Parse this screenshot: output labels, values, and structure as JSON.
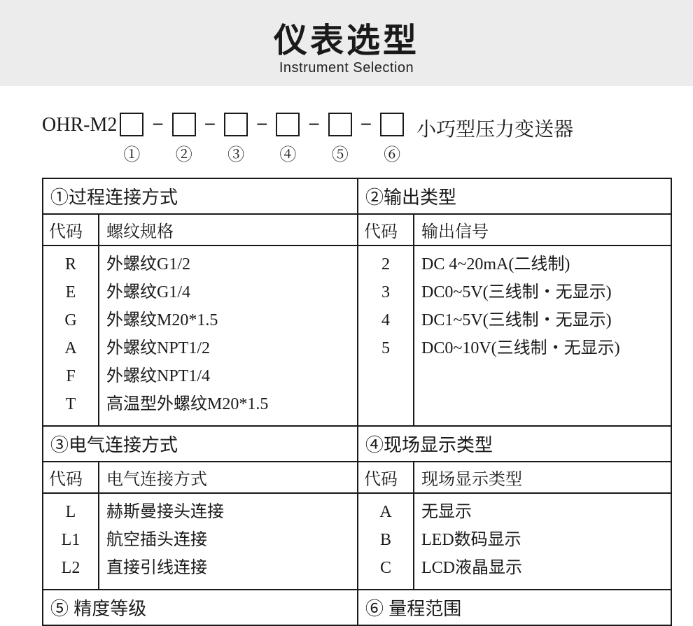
{
  "colors": {
    "background": "#ffffff",
    "header_band": "#ececec",
    "text": "#1a1a1a",
    "border": "#1a1a1a"
  },
  "header": {
    "title_cn": "仪表选型",
    "title_en": "Instrument Selection"
  },
  "model": {
    "prefix": "OHR-M2",
    "suffix": "小巧型压力变送器",
    "slots": [
      "①",
      "②",
      "③",
      "④",
      "⑤",
      "⑥"
    ]
  },
  "sections": {
    "s1": {
      "title": "①过程连接方式",
      "code_label": "代码",
      "desc_label": "螺纹规格",
      "rows": [
        {
          "code": "R",
          "desc": "外螺纹G1/2"
        },
        {
          "code": "E",
          "desc": "外螺纹G1/4"
        },
        {
          "code": "G",
          "desc": "外螺纹M20*1.5"
        },
        {
          "code": "A",
          "desc": "外螺纹NPT1/2"
        },
        {
          "code": "F",
          "desc": "外螺纹NPT1/4"
        },
        {
          "code": "T",
          "desc": "高温型外螺纹M20*1.5"
        }
      ]
    },
    "s2": {
      "title": "②输出类型",
      "code_label": "代码",
      "desc_label": "输出信号",
      "rows": [
        {
          "code": "2",
          "desc": "DC 4~20mA(二线制)"
        },
        {
          "code": "3",
          "desc": "DC0~5V(三线制・无显示)"
        },
        {
          "code": "4",
          "desc": "DC1~5V(三线制・无显示)"
        },
        {
          "code": "5",
          "desc": "DC0~10V(三线制・无显示)"
        }
      ]
    },
    "s3": {
      "title": "③电气连接方式",
      "code_label": "代码",
      "desc_label": "电气连接方式",
      "rows": [
        {
          "code": "L",
          "desc": "赫斯曼接头连接"
        },
        {
          "code": "L1",
          "desc": "航空插头连接"
        },
        {
          "code": "L2",
          "desc": "直接引线连接"
        }
      ]
    },
    "s4": {
      "title": "④现场显示类型",
      "code_label": "代码",
      "desc_label": "现场显示类型",
      "rows": [
        {
          "code": "A",
          "desc": "无显示"
        },
        {
          "code": "B",
          "desc": "LED数码显示"
        },
        {
          "code": "C",
          "desc": "LCD液晶显示"
        }
      ]
    },
    "s5": {
      "title": "⑤ 精度等级"
    },
    "s6": {
      "title": "⑥ 量程范围"
    }
  }
}
